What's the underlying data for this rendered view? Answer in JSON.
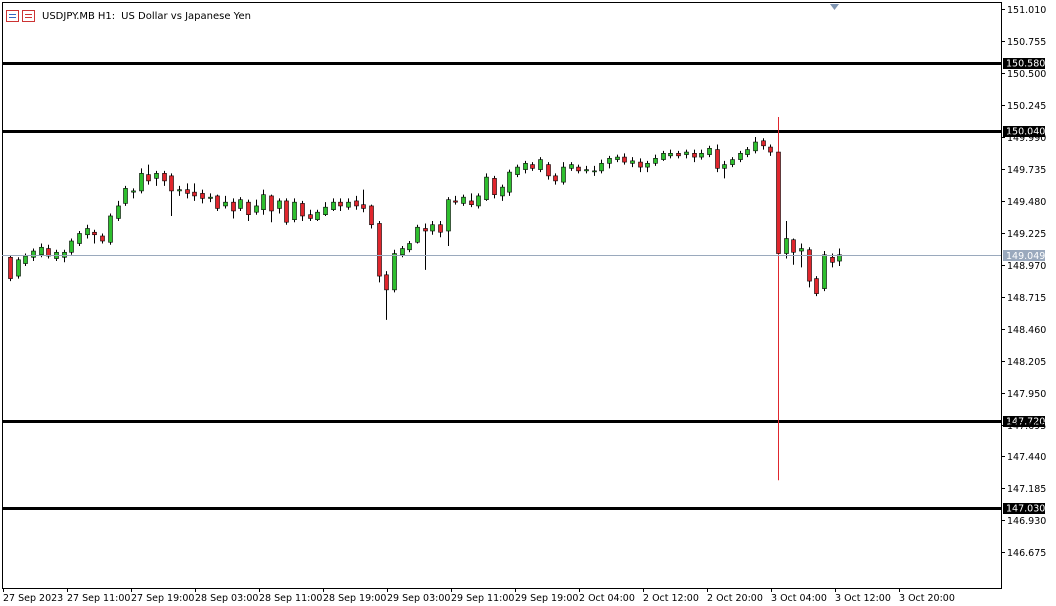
{
  "header": {
    "symbol": "USDJPY.MB",
    "timeframe": "H1:",
    "description": "US Dollar vs Japanese Yen"
  },
  "colors": {
    "bull": "#2ebf2e",
    "bear": "#e0262d",
    "wick": "#000000",
    "current_line": "#9aa9bd",
    "current_label_bg": "#9aa9bd",
    "level_line": "#000000",
    "axis": "#000000"
  },
  "chart_data": {
    "type": "candlestick",
    "y_ticks": [
      "151.010",
      "150.755",
      "150.500",
      "150.245",
      "149.990",
      "149.735",
      "149.480",
      "149.225",
      "148.970",
      "148.715",
      "148.460",
      "148.205",
      "147.950",
      "147.695",
      "147.440",
      "147.185",
      "146.930",
      "146.675"
    ],
    "ylim": [
      146.39,
      151.06
    ],
    "x_ticks": [
      "27 Sep 2023",
      "27 Sep 11:00",
      "27 Sep 19:00",
      "28 Sep 03:00",
      "28 Sep 11:00",
      "28 Sep 19:00",
      "29 Sep 03:00",
      "29 Sep 11:00",
      "29 Sep 19:00",
      "2 Oct 04:00",
      "2 Oct 12:00",
      "2 Oct 20:00",
      "3 Oct 04:00",
      "3 Oct 12:00",
      "3 Oct 20:00"
    ],
    "horizontal_levels": [
      "150.580",
      "150.040",
      "147.720",
      "147.030"
    ],
    "current_price": "149.049",
    "candles": [
      [
        149.03,
        148.86,
        149.04,
        148.84
      ],
      [
        148.88,
        149.01,
        149.03,
        148.86
      ],
      [
        148.98,
        149.04,
        149.06,
        148.96
      ],
      [
        149.03,
        149.08,
        149.1,
        149.0
      ],
      [
        149.05,
        149.11,
        149.14,
        149.03
      ],
      [
        149.1,
        149.04,
        149.13,
        149.02
      ],
      [
        149.02,
        149.07,
        149.09,
        149.0
      ],
      [
        149.03,
        149.07,
        149.09,
        148.99
      ],
      [
        149.07,
        149.16,
        149.18,
        149.05
      ],
      [
        149.14,
        149.22,
        149.24,
        149.12
      ],
      [
        149.21,
        149.26,
        149.29,
        149.18
      ],
      [
        149.23,
        149.21,
        149.25,
        149.14
      ],
      [
        149.2,
        149.16,
        149.22,
        149.14
      ],
      [
        149.15,
        149.36,
        149.38,
        149.13
      ],
      [
        149.34,
        149.44,
        149.48,
        149.32
      ],
      [
        149.46,
        149.58,
        149.6,
        149.44
      ],
      [
        149.55,
        149.56,
        149.58,
        149.5
      ],
      [
        149.56,
        149.7,
        149.74,
        149.54
      ],
      [
        149.69,
        149.64,
        149.77,
        149.61
      ],
      [
        149.66,
        149.7,
        149.72,
        149.6
      ],
      [
        149.7,
        149.64,
        149.72,
        149.6
      ],
      [
        149.68,
        149.56,
        149.7,
        149.36
      ],
      [
        149.56,
        149.57,
        149.6,
        149.52
      ],
      [
        149.57,
        149.54,
        149.62,
        149.5
      ],
      [
        149.55,
        149.52,
        149.62,
        149.48
      ],
      [
        149.54,
        149.5,
        149.57,
        149.46
      ],
      [
        149.5,
        149.51,
        149.54,
        149.47
      ],
      [
        149.52,
        149.42,
        149.53,
        149.4
      ],
      [
        149.44,
        149.47,
        149.52,
        149.42
      ],
      [
        149.47,
        149.4,
        149.5,
        149.34
      ],
      [
        149.42,
        149.49,
        149.51,
        149.4
      ],
      [
        149.47,
        149.37,
        149.49,
        149.32
      ],
      [
        149.39,
        149.44,
        149.49,
        149.37
      ],
      [
        149.41,
        149.53,
        149.57,
        149.37
      ],
      [
        149.52,
        149.4,
        149.53,
        149.31
      ],
      [
        149.42,
        149.48,
        149.5,
        149.38
      ],
      [
        149.48,
        149.31,
        149.5,
        149.29
      ],
      [
        149.33,
        149.47,
        149.5,
        149.31
      ],
      [
        149.46,
        149.36,
        149.48,
        149.32
      ],
      [
        149.37,
        149.34,
        149.41,
        149.32
      ],
      [
        149.33,
        149.39,
        149.41,
        149.32
      ],
      [
        149.37,
        149.43,
        149.47,
        149.36
      ],
      [
        149.41,
        149.47,
        149.5,
        149.4
      ],
      [
        149.47,
        149.44,
        149.5,
        149.4
      ],
      [
        149.43,
        149.47,
        149.5,
        149.41
      ],
      [
        149.48,
        149.44,
        149.52,
        149.41
      ],
      [
        149.45,
        149.42,
        149.57,
        149.39
      ],
      [
        149.44,
        149.29,
        149.45,
        149.26
      ],
      [
        149.3,
        148.88,
        149.32,
        148.83
      ],
      [
        148.89,
        148.77,
        148.92,
        148.53
      ],
      [
        148.77,
        149.06,
        149.09,
        148.75
      ],
      [
        149.05,
        149.1,
        149.12,
        149.03
      ],
      [
        149.09,
        149.14,
        149.16,
        149.07
      ],
      [
        149.15,
        149.27,
        149.29,
        149.14
      ],
      [
        149.26,
        149.24,
        149.3,
        148.93
      ],
      [
        149.24,
        149.29,
        149.32,
        149.21
      ],
      [
        149.29,
        149.23,
        149.32,
        149.19
      ],
      [
        149.24,
        149.49,
        149.51,
        149.12
      ],
      [
        149.48,
        149.47,
        149.52,
        149.45
      ],
      [
        149.46,
        149.51,
        149.53,
        149.44
      ],
      [
        149.48,
        149.45,
        149.54,
        149.43
      ],
      [
        149.44,
        149.52,
        149.54,
        149.42
      ],
      [
        149.49,
        149.67,
        149.7,
        149.48
      ],
      [
        149.66,
        149.53,
        149.68,
        149.5
      ],
      [
        149.52,
        149.59,
        149.61,
        149.48
      ],
      [
        149.55,
        149.71,
        149.73,
        149.52
      ],
      [
        149.69,
        149.75,
        149.77,
        149.67
      ],
      [
        149.73,
        149.78,
        149.8,
        149.7
      ],
      [
        149.77,
        149.74,
        149.79,
        149.72
      ],
      [
        149.73,
        149.81,
        149.83,
        149.71
      ],
      [
        149.77,
        149.68,
        149.79,
        149.65
      ],
      [
        149.68,
        149.64,
        149.7,
        149.61
      ],
      [
        149.63,
        149.75,
        149.79,
        149.61
      ],
      [
        149.74,
        149.77,
        149.79,
        149.72
      ],
      [
        149.75,
        149.72,
        149.77,
        149.7
      ],
      [
        149.72,
        149.73,
        149.76,
        149.7
      ],
      [
        149.72,
        149.72,
        149.76,
        149.68
      ],
      [
        149.72,
        149.78,
        149.81,
        149.7
      ],
      [
        149.78,
        149.82,
        149.84,
        149.74
      ],
      [
        149.81,
        149.83,
        149.85,
        149.79
      ],
      [
        149.83,
        149.79,
        149.86,
        149.77
      ],
      [
        149.78,
        149.8,
        149.83,
        149.75
      ],
      [
        149.79,
        149.75,
        149.82,
        149.71
      ],
      [
        149.75,
        149.78,
        149.8,
        149.71
      ],
      [
        149.78,
        149.82,
        149.85,
        149.76
      ],
      [
        149.81,
        149.86,
        149.88,
        149.8
      ],
      [
        149.84,
        149.86,
        149.89,
        149.82
      ],
      [
        149.86,
        149.84,
        149.88,
        149.82
      ],
      [
        149.85,
        149.87,
        149.89,
        149.82
      ],
      [
        149.86,
        149.83,
        149.89,
        149.79
      ],
      [
        149.83,
        149.86,
        149.89,
        149.81
      ],
      [
        149.85,
        149.9,
        149.92,
        149.83
      ],
      [
        149.89,
        149.74,
        149.93,
        149.71
      ],
      [
        149.74,
        149.77,
        149.8,
        149.66
      ],
      [
        149.77,
        149.81,
        149.83,
        149.75
      ],
      [
        149.81,
        149.86,
        149.88,
        149.79
      ],
      [
        149.85,
        149.89,
        149.91,
        149.83
      ],
      [
        149.88,
        149.95,
        149.99,
        149.86
      ],
      [
        149.96,
        149.92,
        149.98,
        149.89
      ],
      [
        149.91,
        149.87,
        149.93,
        149.84
      ],
      [
        149.87,
        149.06,
        150.15,
        147.25
      ],
      [
        149.06,
        149.18,
        149.32,
        149.02
      ],
      [
        149.17,
        149.07,
        149.18,
        148.97
      ],
      [
        149.08,
        149.1,
        149.14,
        148.95
      ],
      [
        149.09,
        148.84,
        149.11,
        148.79
      ],
      [
        148.86,
        148.74,
        148.88,
        148.72
      ],
      [
        148.78,
        149.05,
        149.08,
        148.76
      ],
      [
        149.03,
        148.99,
        149.06,
        148.95
      ],
      [
        149.0,
        149.05,
        149.1,
        148.96
      ]
    ]
  }
}
